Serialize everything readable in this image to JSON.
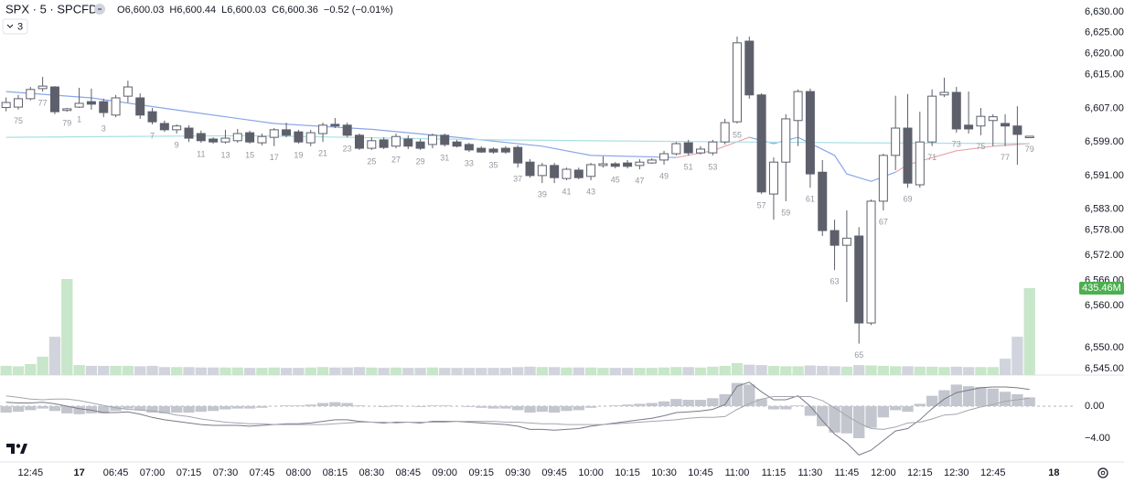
{
  "chart_data": {
    "type": "candlestick",
    "header": {
      "symbol": "SPX · 5 · SPCFD",
      "ohlc": [
        {
          "label": "O",
          "value": "6,600.03"
        },
        {
          "label": "H",
          "value": "6,600.44"
        },
        {
          "label": "L",
          "value": "6,600.03"
        },
        {
          "label": "C",
          "value": "6,600.36"
        }
      ],
      "change": "−0.52 (−0.01%)",
      "indicator_count": "3"
    },
    "up_color": "#ffffff",
    "down_color": "#5d606b",
    "wick_color": "#5d606b",
    "open": [
      6607.2,
      6607.3,
      6609.3,
      6611.7,
      6612.1,
      6606.5,
      6607.3,
      6608.6,
      6608.6,
      6605.4,
      6609.9,
      6609.5,
      6606.2,
      6603.4,
      6601.9,
      6602.3,
      6601.0,
      6599.7,
      6599.0,
      6599.3,
      6601.2,
      6598.8,
      6600.1,
      6601.9,
      6601.4,
      6598.8,
      6601.0,
      6603.2,
      6603.0,
      6600.6,
      6597.5,
      6599.5,
      6598.0,
      6599.7,
      6599.0,
      6598.4,
      6600.6,
      6599.0,
      6598.4,
      6597.5,
      6597.3,
      6597.5,
      6597.7,
      6594.2,
      6591.0,
      6593.4,
      6590.3,
      6592.3,
      6590.8,
      6593.4,
      6593.8,
      6594.0,
      6593.4,
      6594.0,
      6594.7,
      6596.2,
      6598.8,
      6596.4,
      6596.4,
      6599.0,
      6603.8,
      6623.0,
      6610.2,
      6586.6,
      6594.2,
      6604.1,
      6611.0,
      6591.8,
      6577.9,
      6574.4,
      6576.6,
      6555.9,
      6584.9,
      6595.8,
      6602.3,
      6588.8,
      6599.0,
      6610.2,
      6610.8,
      6603.0,
      6602.8,
      6604.1,
      6603.4,
      6602.8,
      6600.03
    ],
    "high": [
      6609.6,
      6610.2,
      6612.1,
      6614.5,
      6612.3,
      6607.1,
      6611.9,
      6611.7,
      6609.3,
      6610.2,
      6613.6,
      6610.6,
      6607.1,
      6604.1,
      6603.2,
      6603.0,
      6601.7,
      6600.1,
      6601.9,
      6602.1,
      6601.7,
      6601.0,
      6602.3,
      6603.6,
      6601.9,
      6601.9,
      6603.6,
      6604.7,
      6603.6,
      6601.0,
      6600.1,
      6600.1,
      6601.0,
      6600.6,
      6599.7,
      6601.0,
      6601.0,
      6599.5,
      6598.8,
      6598.0,
      6597.7,
      6598.0,
      6598.2,
      6594.9,
      6594.0,
      6594.0,
      6592.9,
      6592.9,
      6594.0,
      6595.6,
      6594.2,
      6594.7,
      6594.9,
      6595.1,
      6596.9,
      6599.0,
      6599.5,
      6598.0,
      6599.5,
      6604.5,
      6624.1,
      6624.1,
      6610.6,
      6595.3,
      6605.6,
      6611.5,
      6611.7,
      6594.7,
      6580.5,
      6582.7,
      6578.7,
      6585.3,
      6596.2,
      6610.0,
      6610.4,
      6606.2,
      6611.5,
      6614.3,
      6612.1,
      6611.0,
      6607.1,
      6605.6,
      6605.6,
      6607.5,
      6600.44
    ],
    "low": [
      6606.3,
      6606.7,
      6608.9,
      6611.0,
      6605.6,
      6606.2,
      6607.1,
      6606.7,
      6604.9,
      6604.9,
      6608.4,
      6604.5,
      6603.2,
      6601.4,
      6601.0,
      6599.0,
      6598.8,
      6598.6,
      6598.6,
      6598.8,
      6598.6,
      6598.2,
      6598.0,
      6600.1,
      6598.6,
      6598.0,
      6599.0,
      6602.3,
      6600.1,
      6597.1,
      6597.1,
      6597.3,
      6597.5,
      6597.3,
      6597.1,
      6597.5,
      6597.9,
      6597.7,
      6596.6,
      6596.4,
      6596.2,
      6596.2,
      6592.9,
      6590.5,
      6589.2,
      6589.2,
      6589.9,
      6590.1,
      6589.9,
      6592.9,
      6592.7,
      6592.7,
      6592.5,
      6593.8,
      6593.6,
      6595.8,
      6595.8,
      6596.0,
      6595.8,
      6598.4,
      6603.4,
      6609.3,
      6586.6,
      6580.5,
      6584.9,
      6598.0,
      6588.1,
      6576.6,
      6568.5,
      6560.9,
      6551.0,
      6555.4,
      6582.7,
      6592.3,
      6588.1,
      6588.1,
      6598.0,
      6609.7,
      6601.2,
      6601.0,
      6600.6,
      6598.0,
      6598.0,
      6593.6,
      6600.03
    ],
    "close": [
      6608.4,
      6609.3,
      6611.5,
      6612.3,
      6606.2,
      6606.9,
      6608.2,
      6608.0,
      6606.0,
      6609.5,
      6612.1,
      6605.4,
      6603.8,
      6601.9,
      6602.8,
      6599.9,
      6599.3,
      6599.0,
      6599.9,
      6601.0,
      6599.0,
      6600.3,
      6601.9,
      6600.6,
      6599.0,
      6601.2,
      6603.0,
      6602.8,
      6600.6,
      6597.5,
      6599.3,
      6597.7,
      6600.3,
      6598.0,
      6597.5,
      6600.6,
      6598.4,
      6598.0,
      6597.1,
      6596.6,
      6596.6,
      6596.6,
      6594.0,
      6591.0,
      6593.4,
      6590.5,
      6592.5,
      6590.5,
      6593.6,
      6593.8,
      6593.2,
      6593.2,
      6594.2,
      6594.7,
      6596.2,
      6598.6,
      6596.4,
      6597.3,
      6599.0,
      6603.6,
      6622.6,
      6610.2,
      6587.1,
      6594.2,
      6604.5,
      6611.0,
      6591.4,
      6577.9,
      6574.4,
      6576.1,
      6555.9,
      6584.9,
      6595.8,
      6602.3,
      6589.2,
      6599.0,
      6609.9,
      6610.8,
      6602.1,
      6602.1,
      6605.1,
      6605.0,
      6602.8,
      6600.8,
      6600.36
    ],
    "bar_numbers": [
      null,
      75,
      null,
      77,
      null,
      79,
      1,
      null,
      3,
      null,
      null,
      null,
      7,
      null,
      9,
      null,
      11,
      null,
      13,
      null,
      15,
      null,
      17,
      null,
      19,
      null,
      21,
      null,
      23,
      null,
      25,
      null,
      27,
      null,
      29,
      null,
      31,
      null,
      33,
      null,
      35,
      null,
      37,
      null,
      39,
      null,
      41,
      null,
      43,
      null,
      45,
      null,
      47,
      null,
      49,
      null,
      51,
      null,
      53,
      null,
      55,
      null,
      57,
      null,
      59,
      null,
      61,
      null,
      63,
      null,
      65,
      null,
      67,
      null,
      69,
      null,
      71,
      null,
      73,
      null,
      75,
      null,
      77,
      null,
      79
    ],
    "ylim": [
      6543.5,
      6632.8
    ],
    "yticks": [
      {
        "value": 6630,
        "label": "6,630.00"
      },
      {
        "value": 6625,
        "label": "6,625.00"
      },
      {
        "value": 6620,
        "label": "6,620.00"
      },
      {
        "value": 6615,
        "label": "6,615.00"
      },
      {
        "value": 6607,
        "label": "6,607.00"
      },
      {
        "value": 6599,
        "label": "6,599.00"
      },
      {
        "value": 6591,
        "label": "6,591.00"
      },
      {
        "value": 6583,
        "label": "6,583.00"
      },
      {
        "value": 6578,
        "label": "6,578.00"
      },
      {
        "value": 6572,
        "label": "6,572.00"
      },
      {
        "value": 6566,
        "label": "6,566.00"
      },
      {
        "value": 6560,
        "label": "6,560.00"
      },
      {
        "value": 6550,
        "label": "6,550.00"
      },
      {
        "value": 6545,
        "label": "6,545.00"
      }
    ],
    "xlim": [
      -0.5,
      87.7
    ],
    "xticks": [
      {
        "value": 2,
        "label": "12:45"
      },
      {
        "value": 6,
        "label": "17"
      },
      {
        "value": 9,
        "label": "06:45"
      },
      {
        "value": 12,
        "label": "07:00"
      },
      {
        "value": 15,
        "label": "07:15"
      },
      {
        "value": 18,
        "label": "07:30"
      },
      {
        "value": 21,
        "label": "07:45"
      },
      {
        "value": 24,
        "label": "08:00"
      },
      {
        "value": 27,
        "label": "08:15"
      },
      {
        "value": 30,
        "label": "08:30"
      },
      {
        "value": 33,
        "label": "08:45"
      },
      {
        "value": 36,
        "label": "09:00"
      },
      {
        "value": 39,
        "label": "09:15"
      },
      {
        "value": 42,
        "label": "09:30"
      },
      {
        "value": 45,
        "label": "09:45"
      },
      {
        "value": 48,
        "label": "10:00"
      },
      {
        "value": 51,
        "label": "10:15"
      },
      {
        "value": 54,
        "label": "10:30"
      },
      {
        "value": 57,
        "label": "10:45"
      },
      {
        "value": 60,
        "label": "11:00"
      },
      {
        "value": 63,
        "label": "11:15"
      },
      {
        "value": 66,
        "label": "11:30"
      },
      {
        "value": 69,
        "label": "11:45"
      },
      {
        "value": 72,
        "label": "12:00"
      },
      {
        "value": 75,
        "label": "12:15"
      },
      {
        "value": 78,
        "label": "12:30"
      },
      {
        "value": 81,
        "label": "12:45"
      },
      {
        "value": 86,
        "label": "18"
      }
    ],
    "moving_averages": [
      {
        "color": "#8aa6e8",
        "x": [
          0,
          7,
          15,
          22,
          30,
          37,
          44,
          48,
          55
        ],
        "values": [
          6611.0,
          6609.5,
          6606.2,
          6603.4,
          6602.0,
          6600.1,
          6598.0,
          6595.8,
          6595.3
        ]
      },
      {
        "color": "#eba3ad",
        "x": [
          55,
          58,
          61
        ],
        "values": [
          6595.3,
          6596.9,
          6600.1
        ]
      },
      {
        "color": "#8aa6e8",
        "x": [
          61,
          63,
          65,
          68,
          69,
          71,
          73
        ],
        "values": [
          6600.1,
          6598.6,
          6600.1,
          6595.8,
          6591.4,
          6589.6,
          6591.8
        ]
      },
      {
        "color": "#eba3ad",
        "x": [
          73,
          74,
          78,
          81,
          84
        ],
        "values": [
          6591.8,
          6593.6,
          6596.9,
          6598.0,
          6598.6
        ]
      },
      {
        "color": "#a9e0e3",
        "x": [
          0,
          20,
          40,
          60,
          70,
          84
        ],
        "values": [
          6600.1,
          6600.5,
          6599.5,
          6599.0,
          6598.8,
          6598.6
        ]
      }
    ],
    "volume": {
      "up_color": "#c8e6c9",
      "down_color": "#d1d4dc",
      "label_color": "#4caf50",
      "values": [
        46,
        44,
        55,
        92,
        192,
        481,
        50,
        46,
        46,
        46,
        46,
        44,
        46,
        40,
        40,
        40,
        38,
        38,
        38,
        38,
        36,
        36,
        38,
        36,
        36,
        38,
        40,
        38,
        38,
        40,
        38,
        36,
        38,
        36,
        36,
        38,
        36,
        36,
        36,
        36,
        36,
        36,
        40,
        42,
        40,
        40,
        38,
        38,
        38,
        36,
        36,
        36,
        36,
        36,
        38,
        40,
        40,
        38,
        42,
        46,
        60,
        52,
        50,
        46,
        44,
        44,
        48,
        46,
        44,
        42,
        50,
        48,
        46,
        44,
        44,
        42,
        42,
        40,
        42,
        40,
        40,
        40,
        82,
        192,
        435.46
      ],
      "value_labels": [
        null,
        null,
        null,
        null,
        null,
        null,
        null,
        null,
        null,
        null,
        null,
        null,
        null,
        null,
        null,
        null,
        null,
        null,
        null,
        null,
        null,
        null,
        null,
        null,
        null,
        null,
        null,
        null,
        null,
        null,
        null,
        null,
        null,
        null,
        null,
        null,
        null,
        null,
        null,
        null,
        null,
        null,
        null,
        null,
        null,
        null,
        null,
        null,
        null,
        null,
        null,
        null,
        null,
        null,
        null,
        null,
        null,
        null,
        null,
        null,
        null,
        null,
        null,
        null,
        null,
        null,
        null,
        null,
        null,
        null,
        null,
        null,
        null,
        null,
        null,
        null,
        null,
        null,
        null,
        null,
        null,
        null,
        null,
        null,
        "435.46M"
      ]
    },
    "macd": {
      "ylim": [
        -6.97,
        3.89
      ],
      "yticks": [
        {
          "value": 0,
          "label": "0.00"
        },
        {
          "value": -4,
          "label": "−4.00"
        }
      ],
      "histogram_color": "#c3c6ce",
      "macd_color": "#787b86",
      "signal_color": "#a3a6af",
      "histogram": [
        -0.8,
        -0.7,
        -0.5,
        -0.3,
        -0.6,
        -0.9,
        -1.0,
        -0.9,
        -0.9,
        -0.6,
        -0.3,
        -0.5,
        -0.8,
        -0.9,
        -0.8,
        -0.8,
        -0.7,
        -0.6,
        -0.4,
        -0.3,
        -0.3,
        -0.2,
        0.0,
        0.1,
        0.1,
        0.2,
        0.4,
        0.5,
        0.4,
        0.1,
        0.0,
        -0.1,
        0.1,
        0.0,
        -0.1,
        0.1,
        0.1,
        0.0,
        -0.1,
        -0.2,
        -0.3,
        -0.3,
        -0.5,
        -0.8,
        -0.7,
        -0.8,
        -0.6,
        -0.5,
        -0.2,
        0.0,
        0.1,
        0.2,
        0.3,
        0.4,
        0.6,
        0.9,
        0.8,
        0.8,
        1.0,
        1.5,
        2.9,
        2.7,
        0.9,
        -0.4,
        -0.4,
        0.1,
        -1.2,
        -2.5,
        -3.3,
        -3.4,
        -4.0,
        -2.7,
        -1.4,
        -0.5,
        -0.7,
        0.3,
        1.3,
        2.0,
        2.7,
        2.5,
        2.4,
        2.2,
        1.8,
        1.5,
        1.1
      ],
      "macd": [
        0.5,
        0.4,
        0.4,
        0.5,
        0.3,
        0.0,
        -0.3,
        -0.5,
        -0.8,
        -0.8,
        -0.7,
        -1.0,
        -1.4,
        -1.7,
        -1.9,
        -2.1,
        -2.3,
        -2.4,
        -2.4,
        -2.4,
        -2.5,
        -2.4,
        -2.3,
        -2.2,
        -2.2,
        -2.1,
        -1.9,
        -1.7,
        -1.7,
        -1.9,
        -2.0,
        -2.1,
        -2.0,
        -2.0,
        -2.1,
        -1.9,
        -1.9,
        -1.9,
        -2.0,
        -2.1,
        -2.2,
        -2.3,
        -2.5,
        -2.9,
        -2.9,
        -3.0,
        -2.9,
        -2.8,
        -2.5,
        -2.3,
        -2.1,
        -1.9,
        -1.7,
        -1.5,
        -1.2,
        -0.8,
        -0.7,
        -0.6,
        -0.4,
        0.2,
        2.5,
        3.0,
        1.8,
        0.8,
        0.8,
        1.3,
        0.0,
        -1.8,
        -3.5,
        -4.6,
        -6.1,
        -5.5,
        -4.3,
        -3.1,
        -2.8,
        -1.7,
        -0.3,
        0.9,
        1.7,
        2.0,
        2.3,
        2.4,
        2.4,
        2.3,
        2.1
      ],
      "signal": [
        1.3,
        1.1,
        0.9,
        0.8,
        0.9,
        0.9,
        0.7,
        0.4,
        0.1,
        -0.2,
        -0.4,
        -0.5,
        -0.6,
        -0.8,
        -1.1,
        -1.3,
        -1.6,
        -1.8,
        -2.0,
        -2.1,
        -2.2,
        -2.2,
        -2.3,
        -2.3,
        -2.3,
        -2.3,
        -2.3,
        -2.2,
        -2.1,
        -2.0,
        -2.0,
        -2.0,
        -2.1,
        -2.0,
        -2.0,
        -2.0,
        -2.0,
        -1.9,
        -1.9,
        -1.9,
        -1.9,
        -2.0,
        -2.0,
        -2.1,
        -2.2,
        -2.2,
        -2.3,
        -2.3,
        -2.3,
        -2.3,
        -2.2,
        -2.1,
        -2.0,
        -1.9,
        -1.8,
        -1.7,
        -1.5,
        -1.4,
        -1.4,
        -1.3,
        -0.4,
        0.3,
        0.9,
        1.2,
        1.2,
        1.2,
        1.2,
        0.7,
        -0.2,
        -1.2,
        -2.1,
        -2.8,
        -2.9,
        -2.6,
        -2.1,
        -2.0,
        -1.6,
        -1.1,
        -1.0,
        -0.5,
        -0.1,
        0.2,
        0.6,
        0.8,
        1.0
      ]
    }
  }
}
